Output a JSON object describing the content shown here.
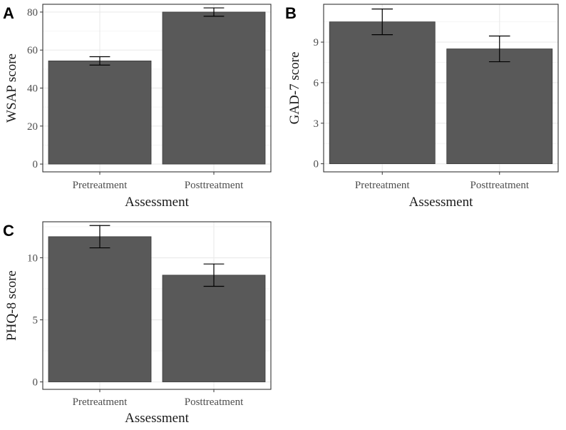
{
  "figure": {
    "colors": {
      "bar_fill": "#595959",
      "bar_stroke": "#3a3a3a",
      "grid_major": "#ebebeb",
      "grid_minor": "#f5f5f5",
      "panel_border": "#333333",
      "error_bar": "#000000"
    }
  },
  "chart_data": [
    {
      "panel_label": "A",
      "type": "bar",
      "xlabel": "Assessment",
      "ylabel": "WSAP score",
      "categories": [
        "Pretreatment",
        "Posttreatment"
      ],
      "values": [
        54.3,
        80.0
      ],
      "errors": [
        2.2,
        2.2
      ],
      "yticks": [
        0,
        20,
        40,
        60,
        80
      ],
      "ylim": [
        -4.1,
        84.1
      ]
    },
    {
      "panel_label": "B",
      "type": "bar",
      "xlabel": "Assessment",
      "ylabel": "GAD-7 score",
      "categories": [
        "Pretreatment",
        "Posttreatment"
      ],
      "values": [
        10.5,
        8.5
      ],
      "errors": [
        0.95,
        0.95
      ],
      "yticks": [
        0,
        3,
        6,
        9
      ],
      "ylim": [
        -0.6,
        11.8
      ]
    },
    {
      "panel_label": "C",
      "type": "bar",
      "xlabel": "Assessment",
      "ylabel": "PHQ-8 score",
      "categories": [
        "Pretreatment",
        "Posttreatment"
      ],
      "values": [
        11.7,
        8.6
      ],
      "errors": [
        0.9,
        0.9
      ],
      "yticks": [
        0,
        5,
        10
      ],
      "ylim": [
        -0.6,
        12.9
      ]
    }
  ]
}
